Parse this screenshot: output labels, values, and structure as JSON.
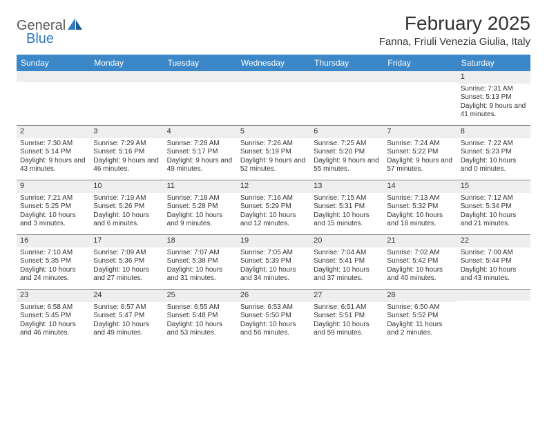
{
  "logo": {
    "word1": "General",
    "word2": "Blue"
  },
  "title": "February 2025",
  "location": "Fanna, Friuli Venezia Giulia, Italy",
  "colors": {
    "header_bg": "#3c87c7",
    "header_text": "#ffffff",
    "day_num_bg": "#eeeeee",
    "border": "#888888",
    "text": "#333333",
    "logo_blue": "#2f7bbf"
  },
  "dayHeaders": [
    "Sunday",
    "Monday",
    "Tuesday",
    "Wednesday",
    "Thursday",
    "Friday",
    "Saturday"
  ],
  "weeks": [
    [
      {
        "num": "",
        "lines": []
      },
      {
        "num": "",
        "lines": []
      },
      {
        "num": "",
        "lines": []
      },
      {
        "num": "",
        "lines": []
      },
      {
        "num": "",
        "lines": []
      },
      {
        "num": "",
        "lines": []
      },
      {
        "num": "1",
        "lines": [
          "Sunrise: 7:31 AM",
          "Sunset: 5:13 PM",
          "Daylight: 9 hours and 41 minutes."
        ]
      }
    ],
    [
      {
        "num": "2",
        "lines": [
          "Sunrise: 7:30 AM",
          "Sunset: 5:14 PM",
          "Daylight: 9 hours and 43 minutes."
        ]
      },
      {
        "num": "3",
        "lines": [
          "Sunrise: 7:29 AM",
          "Sunset: 5:16 PM",
          "Daylight: 9 hours and 46 minutes."
        ]
      },
      {
        "num": "4",
        "lines": [
          "Sunrise: 7:28 AM",
          "Sunset: 5:17 PM",
          "Daylight: 9 hours and 49 minutes."
        ]
      },
      {
        "num": "5",
        "lines": [
          "Sunrise: 7:26 AM",
          "Sunset: 5:19 PM",
          "Daylight: 9 hours and 52 minutes."
        ]
      },
      {
        "num": "6",
        "lines": [
          "Sunrise: 7:25 AM",
          "Sunset: 5:20 PM",
          "Daylight: 9 hours and 55 minutes."
        ]
      },
      {
        "num": "7",
        "lines": [
          "Sunrise: 7:24 AM",
          "Sunset: 5:22 PM",
          "Daylight: 9 hours and 57 minutes."
        ]
      },
      {
        "num": "8",
        "lines": [
          "Sunrise: 7:22 AM",
          "Sunset: 5:23 PM",
          "Daylight: 10 hours and 0 minutes."
        ]
      }
    ],
    [
      {
        "num": "9",
        "lines": [
          "Sunrise: 7:21 AM",
          "Sunset: 5:25 PM",
          "Daylight: 10 hours and 3 minutes."
        ]
      },
      {
        "num": "10",
        "lines": [
          "Sunrise: 7:19 AM",
          "Sunset: 5:26 PM",
          "Daylight: 10 hours and 6 minutes."
        ]
      },
      {
        "num": "11",
        "lines": [
          "Sunrise: 7:18 AM",
          "Sunset: 5:28 PM",
          "Daylight: 10 hours and 9 minutes."
        ]
      },
      {
        "num": "12",
        "lines": [
          "Sunrise: 7:16 AM",
          "Sunset: 5:29 PM",
          "Daylight: 10 hours and 12 minutes."
        ]
      },
      {
        "num": "13",
        "lines": [
          "Sunrise: 7:15 AM",
          "Sunset: 5:31 PM",
          "Daylight: 10 hours and 15 minutes."
        ]
      },
      {
        "num": "14",
        "lines": [
          "Sunrise: 7:13 AM",
          "Sunset: 5:32 PM",
          "Daylight: 10 hours and 18 minutes."
        ]
      },
      {
        "num": "15",
        "lines": [
          "Sunrise: 7:12 AM",
          "Sunset: 5:34 PM",
          "Daylight: 10 hours and 21 minutes."
        ]
      }
    ],
    [
      {
        "num": "16",
        "lines": [
          "Sunrise: 7:10 AM",
          "Sunset: 5:35 PM",
          "Daylight: 10 hours and 24 minutes."
        ]
      },
      {
        "num": "17",
        "lines": [
          "Sunrise: 7:09 AM",
          "Sunset: 5:36 PM",
          "Daylight: 10 hours and 27 minutes."
        ]
      },
      {
        "num": "18",
        "lines": [
          "Sunrise: 7:07 AM",
          "Sunset: 5:38 PM",
          "Daylight: 10 hours and 31 minutes."
        ]
      },
      {
        "num": "19",
        "lines": [
          "Sunrise: 7:05 AM",
          "Sunset: 5:39 PM",
          "Daylight: 10 hours and 34 minutes."
        ]
      },
      {
        "num": "20",
        "lines": [
          "Sunrise: 7:04 AM",
          "Sunset: 5:41 PM",
          "Daylight: 10 hours and 37 minutes."
        ]
      },
      {
        "num": "21",
        "lines": [
          "Sunrise: 7:02 AM",
          "Sunset: 5:42 PM",
          "Daylight: 10 hours and 40 minutes."
        ]
      },
      {
        "num": "22",
        "lines": [
          "Sunrise: 7:00 AM",
          "Sunset: 5:44 PM",
          "Daylight: 10 hours and 43 minutes."
        ]
      }
    ],
    [
      {
        "num": "23",
        "lines": [
          "Sunrise: 6:58 AM",
          "Sunset: 5:45 PM",
          "Daylight: 10 hours and 46 minutes."
        ]
      },
      {
        "num": "24",
        "lines": [
          "Sunrise: 6:57 AM",
          "Sunset: 5:47 PM",
          "Daylight: 10 hours and 49 minutes."
        ]
      },
      {
        "num": "25",
        "lines": [
          "Sunrise: 6:55 AM",
          "Sunset: 5:48 PM",
          "Daylight: 10 hours and 53 minutes."
        ]
      },
      {
        "num": "26",
        "lines": [
          "Sunrise: 6:53 AM",
          "Sunset: 5:50 PM",
          "Daylight: 10 hours and 56 minutes."
        ]
      },
      {
        "num": "27",
        "lines": [
          "Sunrise: 6:51 AM",
          "Sunset: 5:51 PM",
          "Daylight: 10 hours and 59 minutes."
        ]
      },
      {
        "num": "28",
        "lines": [
          "Sunrise: 6:50 AM",
          "Sunset: 5:52 PM",
          "Daylight: 11 hours and 2 minutes."
        ]
      },
      {
        "num": "",
        "lines": []
      }
    ]
  ]
}
